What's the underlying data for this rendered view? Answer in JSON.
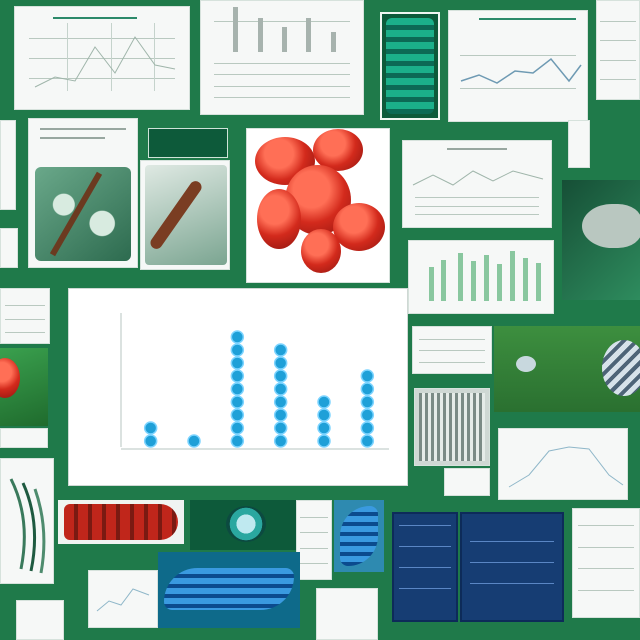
{
  "colors": {
    "background": "#1f7a4a",
    "panel_paper": "#f6f8f7",
    "chart_bead": "#1fa0d8",
    "chart_bead_highlight": "#7dd4ff",
    "red_specimen": "#d32a1c",
    "navy_panel": "#163d73"
  },
  "chart_data": {
    "type": "scatter",
    "title": "",
    "xlabel": "",
    "ylabel": "",
    "categories": [
      "",
      "",
      "",
      "",
      "",
      ""
    ],
    "series": [
      {
        "values": [
          2,
          1,
          9,
          8,
          4,
          6
        ]
      }
    ],
    "ylim": [
      0,
      10
    ],
    "grid": false,
    "legend": "none"
  },
  "icons": {
    "specimen-image": "leaf-cross-section",
    "red-organ": "red-organ-blob",
    "fish": "striped-fish",
    "grid-chart": "line-chart"
  }
}
